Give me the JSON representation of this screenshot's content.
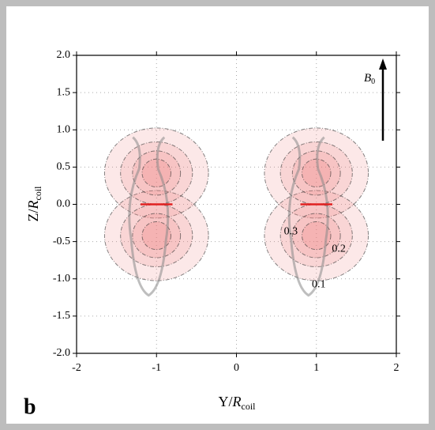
{
  "chart_data": {
    "type": "contour",
    "panel_label": "b",
    "x_label": {
      "text": "Y/",
      "var": "R",
      "sub": "coil"
    },
    "y_label": {
      "text": "Z/",
      "var": "R",
      "sub": "coil"
    },
    "field_label": {
      "var": "B",
      "sub": "0"
    },
    "xlim": [
      -2,
      2
    ],
    "xticks": [
      -2,
      -1,
      0,
      1,
      2
    ],
    "ylim": [
      -2,
      2
    ],
    "yticks": [
      {
        "value": -2,
        "label": "-2.0"
      },
      -1.5,
      {
        "value": -1,
        "label": "-1.0"
      },
      -0.5,
      {
        "value": 0,
        "label": "0.0"
      },
      0.5,
      {
        "value": 1,
        "label": "1.0"
      },
      1.5,
      {
        "value": 2,
        "label": "2.0"
      }
    ],
    "coils": [
      [
        -1.2,
        -0.8
      ],
      [
        0.8,
        1.2
      ]
    ],
    "coil_color": "#e02020",
    "contour_levels": [
      0.3,
      0.2,
      0.1
    ],
    "fill_color": "#f08080",
    "grid": true
  }
}
